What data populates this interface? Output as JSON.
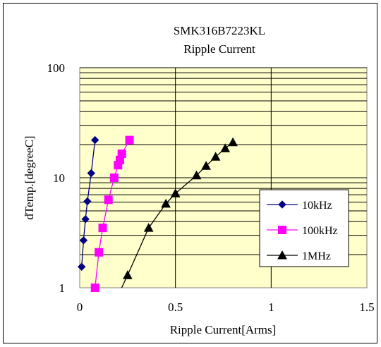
{
  "chart_data": {
    "type": "scatter",
    "title": "SMK316B7223KL",
    "subtitle": "Ripple Current",
    "xlabel": "Ripple Current[Arms]",
    "ylabel": "dTemp.[degreeC]",
    "xlim": [
      0,
      1.5
    ],
    "ylim": [
      1,
      100
    ],
    "y_scale": "log",
    "x_ticks": [
      "0",
      "0.5",
      "1",
      "1.5"
    ],
    "y_ticks": [
      "1",
      "10",
      "100"
    ],
    "grid": true,
    "legend_position": "right",
    "plot_background": "#ffffcc",
    "series": [
      {
        "name": "10kHz",
        "color": "#000080",
        "marker": "diamond",
        "points": [
          [
            0.01,
            1.55
          ],
          [
            0.02,
            2.7
          ],
          [
            0.03,
            4.2
          ],
          [
            0.04,
            6.1
          ],
          [
            0.06,
            11.0
          ],
          [
            0.08,
            22.0
          ]
        ]
      },
      {
        "name": "100kHz",
        "color": "#ff00ff",
        "marker": "square",
        "points": [
          [
            0.08,
            1.0
          ],
          [
            0.1,
            2.1
          ],
          [
            0.12,
            3.5
          ],
          [
            0.15,
            6.3
          ],
          [
            0.18,
            10.0
          ],
          [
            0.2,
            13.0
          ],
          [
            0.21,
            14.5
          ],
          [
            0.22,
            16.5
          ],
          [
            0.26,
            22.0
          ]
        ]
      },
      {
        "name": "1MHz",
        "color": "#000000",
        "marker": "triangle",
        "points": [
          [
            0.2,
            0.85
          ],
          [
            0.25,
            1.3
          ],
          [
            0.36,
            3.5
          ],
          [
            0.45,
            5.8
          ],
          [
            0.5,
            7.2
          ],
          [
            0.61,
            10.5
          ],
          [
            0.66,
            12.8
          ],
          [
            0.71,
            15.5
          ],
          [
            0.76,
            18.5
          ],
          [
            0.8,
            21.0
          ]
        ]
      }
    ]
  }
}
